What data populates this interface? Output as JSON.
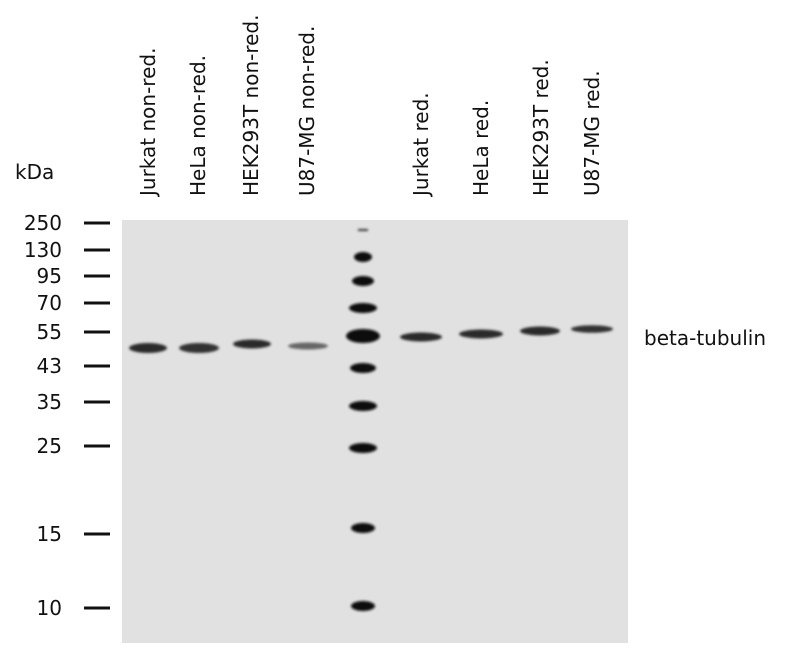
{
  "header": {
    "unit": "kDa"
  },
  "lanes": [
    "Jurkat non-red.",
    "HeLa non-red.",
    "HEK293T non-red.",
    "U87-MG non-red.",
    "Jurkat red.",
    "HeLa red.",
    "HEK293T red.",
    "U87-MG red."
  ],
  "markers": [
    250,
    130,
    95,
    70,
    55,
    43,
    35,
    25,
    15,
    10
  ],
  "band_label": "beta-tubulin"
}
